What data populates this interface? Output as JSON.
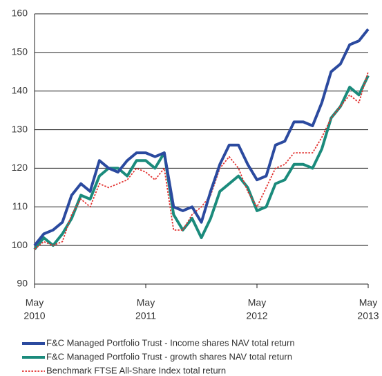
{
  "chart_data": {
    "type": "line",
    "x": [
      "2010-05",
      "2010-06",
      "2010-07",
      "2010-08",
      "2010-09",
      "2010-10",
      "2010-11",
      "2010-12",
      "2011-01",
      "2011-02",
      "2011-03",
      "2011-04",
      "2011-05",
      "2011-06",
      "2011-07",
      "2011-08",
      "2011-09",
      "2011-10",
      "2011-11",
      "2011-12",
      "2012-01",
      "2012-02",
      "2012-03",
      "2012-04",
      "2012-05",
      "2012-06",
      "2012-07",
      "2012-08",
      "2012-09",
      "2012-10",
      "2012-11",
      "2012-12",
      "2013-01",
      "2013-02",
      "2013-03",
      "2013-04",
      "2013-05"
    ],
    "series": [
      {
        "name": "F&C Managed Portfolio Trust - Income shares NAV total return",
        "color": "#2b4a9f",
        "style": "solid",
        "values": [
          100,
          103,
          104,
          106,
          113,
          116,
          114,
          122,
          120,
          119,
          122,
          124,
          124,
          123,
          124,
          110,
          109,
          110,
          106,
          114,
          121,
          126,
          126,
          121,
          117,
          118,
          126,
          127,
          132,
          132,
          131,
          137,
          145,
          147,
          152,
          153,
          156
        ]
      },
      {
        "name": "F&C Managed Portfolio Trust - growth shares NAV total return",
        "color": "#1b8b7c",
        "style": "solid",
        "values": [
          99,
          102,
          100,
          103,
          107,
          113,
          112,
          118,
          120,
          120,
          118,
          122,
          122,
          120,
          124,
          108,
          104,
          107,
          102,
          107,
          114,
          116,
          118,
          115,
          109,
          110,
          116,
          117,
          121,
          121,
          120,
          125,
          133,
          136,
          141,
          139,
          144
        ]
      },
      {
        "name": "Benchmark FTSE All-Share Index total return",
        "color": "#e2312f",
        "style": "dotted",
        "values": [
          99,
          101,
          100,
          101,
          108,
          112,
          110,
          116,
          115,
          116,
          117,
          120,
          119,
          117,
          120,
          104,
          104,
          108,
          110,
          113,
          120,
          123,
          120,
          114,
          110,
          115,
          120,
          121,
          124,
          124,
          124,
          128,
          133,
          136,
          139,
          137,
          145
        ]
      }
    ],
    "xlim": [
      "2010-05",
      "2013-05"
    ],
    "xticks": [
      {
        "value": "2010-05",
        "label": [
          "May",
          "2010"
        ]
      },
      {
        "value": "2011-05",
        "label": [
          "May",
          "2011"
        ]
      },
      {
        "value": "2012-05",
        "label": [
          "May",
          "2012"
        ]
      },
      {
        "value": "2013-05",
        "label": [
          "May",
          "2013"
        ]
      }
    ],
    "ylim": [
      90,
      160
    ],
    "yticks": [
      90,
      100,
      110,
      120,
      130,
      140,
      150,
      160
    ],
    "grid": true
  }
}
